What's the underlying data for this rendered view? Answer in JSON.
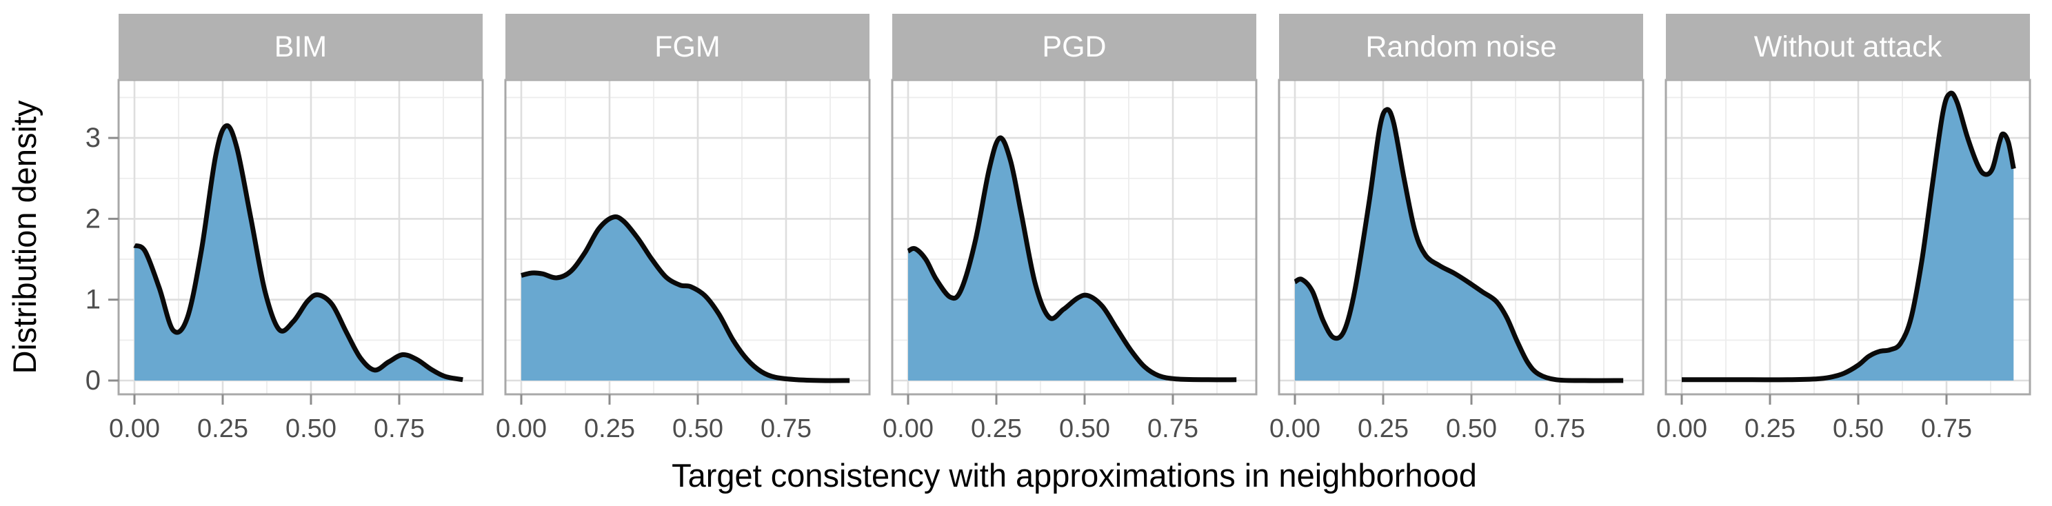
{
  "figure": {
    "kind": "faceted density plot",
    "x_axis_title": "Target consistency with approximations in neighborhood",
    "y_axis_title": "Distribution density"
  },
  "chart_data": {
    "type": "area",
    "subtype": "kernel-density, faceted by attack type",
    "title": "",
    "xlabel": "Target consistency with approximations in neighborhood",
    "ylabel": "Distribution density",
    "xlim": [
      -0.047,
      0.992
    ],
    "ylim": [
      -0.178,
      3.72
    ],
    "x_ticks": {
      "values": [
        0,
        0.25,
        0.5,
        0.75
      ],
      "labels": [
        "0.00",
        "0.25",
        "0.50",
        "0.75"
      ]
    },
    "y_ticks": {
      "values": [
        0,
        1,
        2,
        3
      ],
      "labels": [
        "0",
        "1",
        "2",
        "3"
      ]
    },
    "x_minor_gridlines": [
      0.125,
      0.375,
      0.625,
      0.875
    ],
    "y_minor_gridlines": [
      0.5,
      1.5,
      2.5,
      3.5
    ],
    "grid": "major+minor",
    "legend": "none",
    "colors": {
      "area_fill": "#69a8d0",
      "line": "#0a0a0a",
      "strip_bg": "#b2b2b2",
      "strip_text": "#ffffff",
      "panel_border": "#a8a8a8",
      "grid_major": "#dedede",
      "grid_minor": "#ededed",
      "tick": "#8c8c8c",
      "tick_label": "#4d4d4d",
      "axis_title": "#000000"
    },
    "facets": [
      {
        "label": "BIM",
        "density_points": [
          [
            0.0,
            1.67
          ],
          [
            0.03,
            1.6
          ],
          [
            0.07,
            1.15
          ],
          [
            0.11,
            0.62
          ],
          [
            0.15,
            0.78
          ],
          [
            0.19,
            1.62
          ],
          [
            0.23,
            2.78
          ],
          [
            0.26,
            3.15
          ],
          [
            0.29,
            2.88
          ],
          [
            0.33,
            2.0
          ],
          [
            0.37,
            1.1
          ],
          [
            0.41,
            0.63
          ],
          [
            0.45,
            0.73
          ],
          [
            0.49,
            0.98
          ],
          [
            0.52,
            1.06
          ],
          [
            0.56,
            0.94
          ],
          [
            0.6,
            0.6
          ],
          [
            0.64,
            0.28
          ],
          [
            0.68,
            0.13
          ],
          [
            0.72,
            0.23
          ],
          [
            0.76,
            0.32
          ],
          [
            0.8,
            0.26
          ],
          [
            0.84,
            0.14
          ],
          [
            0.88,
            0.05
          ],
          [
            0.93,
            0.01
          ]
        ]
      },
      {
        "label": "FGM",
        "density_points": [
          [
            0.0,
            1.3
          ],
          [
            0.03,
            1.33
          ],
          [
            0.06,
            1.32
          ],
          [
            0.1,
            1.27
          ],
          [
            0.14,
            1.35
          ],
          [
            0.18,
            1.58
          ],
          [
            0.22,
            1.88
          ],
          [
            0.26,
            2.02
          ],
          [
            0.29,
            1.97
          ],
          [
            0.33,
            1.76
          ],
          [
            0.37,
            1.5
          ],
          [
            0.41,
            1.28
          ],
          [
            0.45,
            1.18
          ],
          [
            0.48,
            1.16
          ],
          [
            0.52,
            1.05
          ],
          [
            0.56,
            0.82
          ],
          [
            0.6,
            0.5
          ],
          [
            0.64,
            0.26
          ],
          [
            0.68,
            0.11
          ],
          [
            0.72,
            0.04
          ],
          [
            0.78,
            0.01
          ],
          [
            0.85,
            0.0
          ],
          [
            0.93,
            0.0
          ]
        ]
      },
      {
        "label": "PGD",
        "density_points": [
          [
            0.0,
            1.6
          ],
          [
            0.02,
            1.63
          ],
          [
            0.05,
            1.5
          ],
          [
            0.08,
            1.25
          ],
          [
            0.12,
            1.03
          ],
          [
            0.15,
            1.12
          ],
          [
            0.19,
            1.72
          ],
          [
            0.23,
            2.62
          ],
          [
            0.26,
            3.0
          ],
          [
            0.29,
            2.72
          ],
          [
            0.32,
            2.08
          ],
          [
            0.36,
            1.2
          ],
          [
            0.4,
            0.78
          ],
          [
            0.44,
            0.88
          ],
          [
            0.48,
            1.02
          ],
          [
            0.51,
            1.05
          ],
          [
            0.55,
            0.92
          ],
          [
            0.59,
            0.65
          ],
          [
            0.63,
            0.38
          ],
          [
            0.67,
            0.17
          ],
          [
            0.71,
            0.06
          ],
          [
            0.76,
            0.02
          ],
          [
            0.85,
            0.01
          ],
          [
            0.93,
            0.01
          ]
        ]
      },
      {
        "label": "Random noise",
        "density_points": [
          [
            0.0,
            1.22
          ],
          [
            0.02,
            1.25
          ],
          [
            0.05,
            1.1
          ],
          [
            0.08,
            0.74
          ],
          [
            0.11,
            0.53
          ],
          [
            0.14,
            0.62
          ],
          [
            0.17,
            1.12
          ],
          [
            0.21,
            2.2
          ],
          [
            0.24,
            3.12
          ],
          [
            0.26,
            3.35
          ],
          [
            0.28,
            3.18
          ],
          [
            0.31,
            2.48
          ],
          [
            0.34,
            1.85
          ],
          [
            0.37,
            1.55
          ],
          [
            0.41,
            1.42
          ],
          [
            0.45,
            1.33
          ],
          [
            0.49,
            1.22
          ],
          [
            0.53,
            1.1
          ],
          [
            0.57,
            0.98
          ],
          [
            0.6,
            0.78
          ],
          [
            0.63,
            0.48
          ],
          [
            0.66,
            0.22
          ],
          [
            0.69,
            0.08
          ],
          [
            0.74,
            0.01
          ],
          [
            0.82,
            0.0
          ],
          [
            0.93,
            0.0
          ]
        ]
      },
      {
        "label": "Without attack",
        "density_points": [
          [
            0.0,
            0.01
          ],
          [
            0.1,
            0.01
          ],
          [
            0.2,
            0.01
          ],
          [
            0.3,
            0.01
          ],
          [
            0.38,
            0.02
          ],
          [
            0.42,
            0.04
          ],
          [
            0.46,
            0.09
          ],
          [
            0.5,
            0.19
          ],
          [
            0.53,
            0.3
          ],
          [
            0.56,
            0.36
          ],
          [
            0.59,
            0.38
          ],
          [
            0.62,
            0.46
          ],
          [
            0.65,
            0.78
          ],
          [
            0.68,
            1.48
          ],
          [
            0.71,
            2.42
          ],
          [
            0.74,
            3.32
          ],
          [
            0.76,
            3.55
          ],
          [
            0.78,
            3.44
          ],
          [
            0.81,
            3.0
          ],
          [
            0.84,
            2.65
          ],
          [
            0.86,
            2.55
          ],
          [
            0.88,
            2.62
          ],
          [
            0.9,
            2.95
          ],
          [
            0.91,
            3.05
          ],
          [
            0.925,
            2.95
          ],
          [
            0.94,
            2.62
          ]
        ]
      }
    ]
  }
}
